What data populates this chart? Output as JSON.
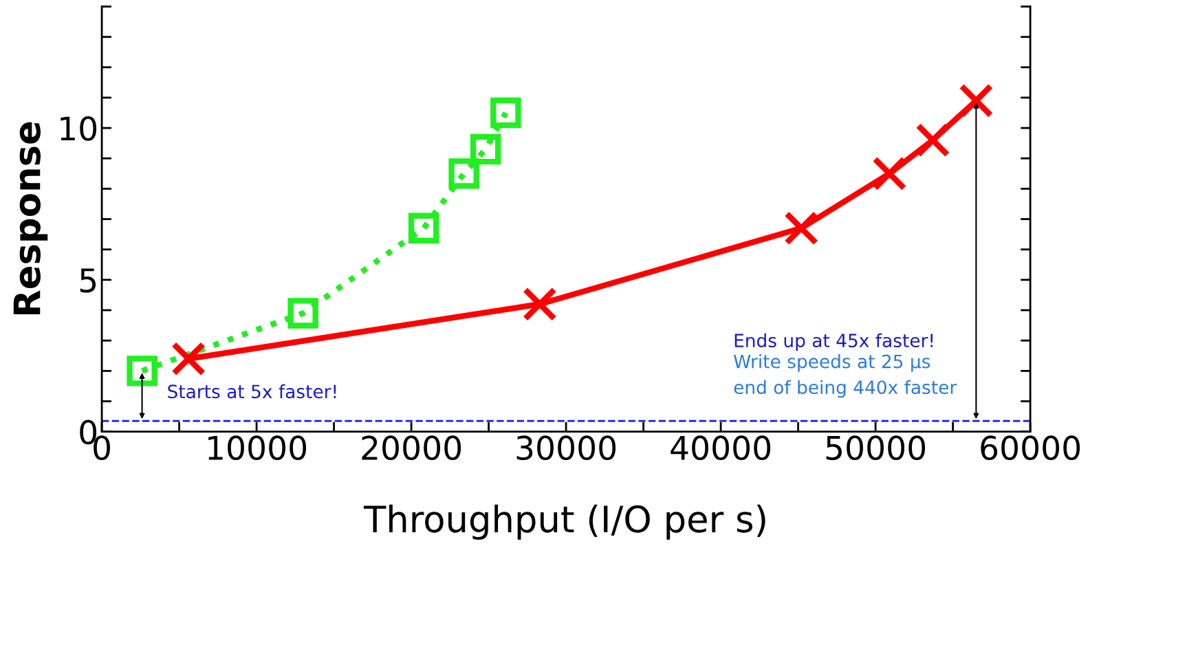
{
  "chart_data": {
    "type": "line",
    "xlabel": "Throughput (I/O per s)",
    "ylabel": "Response",
    "xlim": [
      0,
      60000
    ],
    "ylim": [
      0,
      14
    ],
    "xticks": [
      0,
      {
        "value": 5000,
        "label": null
      },
      10000,
      {
        "value": 15000,
        "label": null
      },
      20000,
      {
        "value": 25000,
        "label": null
      },
      30000,
      {
        "value": 35000,
        "label": null
      },
      40000,
      {
        "value": 45000,
        "label": null
      },
      50000,
      {
        "value": 55000,
        "label": null
      },
      60000
    ],
    "yticks": [
      0,
      {
        "value": 1,
        "label": null
      },
      {
        "value": 2,
        "label": null
      },
      {
        "value": 3,
        "label": null
      },
      {
        "value": 4,
        "label": null
      },
      5,
      {
        "value": 6,
        "label": null
      },
      {
        "value": 7,
        "label": null
      },
      {
        "value": 8,
        "label": null
      },
      {
        "value": 9,
        "label": null
      },
      10,
      {
        "value": 11,
        "label": null
      },
      {
        "value": 12,
        "label": null
      },
      {
        "value": 13,
        "label": null
      },
      {
        "value": 14,
        "label": null
      }
    ],
    "grid": false,
    "legend": false,
    "series": [
      {
        "color": "#22ee22",
        "marker": "square",
        "line_style": "dotted",
        "x": [
          2600,
          13000,
          20800,
          23400,
          24800,
          26100
        ],
        "values": [
          2.0,
          3.9,
          6.7,
          8.5,
          9.3,
          10.5
        ]
      },
      {
        "color": "#ff0000",
        "marker": "cross",
        "line_style": "solid",
        "x": [
          5600,
          28300,
          45200,
          50900,
          53700,
          56500
        ],
        "values": [
          2.4,
          4.2,
          6.7,
          8.5,
          9.6,
          10.9
        ]
      }
    ],
    "ref_lines": [
      {
        "axis": "y",
        "value": 0.35,
        "color": "#1a1aee",
        "line_style": "dashed"
      }
    ],
    "annotations": [
      "Starts at 5x faster!",
      "Ends up at 45x faster!",
      "Write speeds at 25 µs\nend of being 440x faster"
    ]
  }
}
